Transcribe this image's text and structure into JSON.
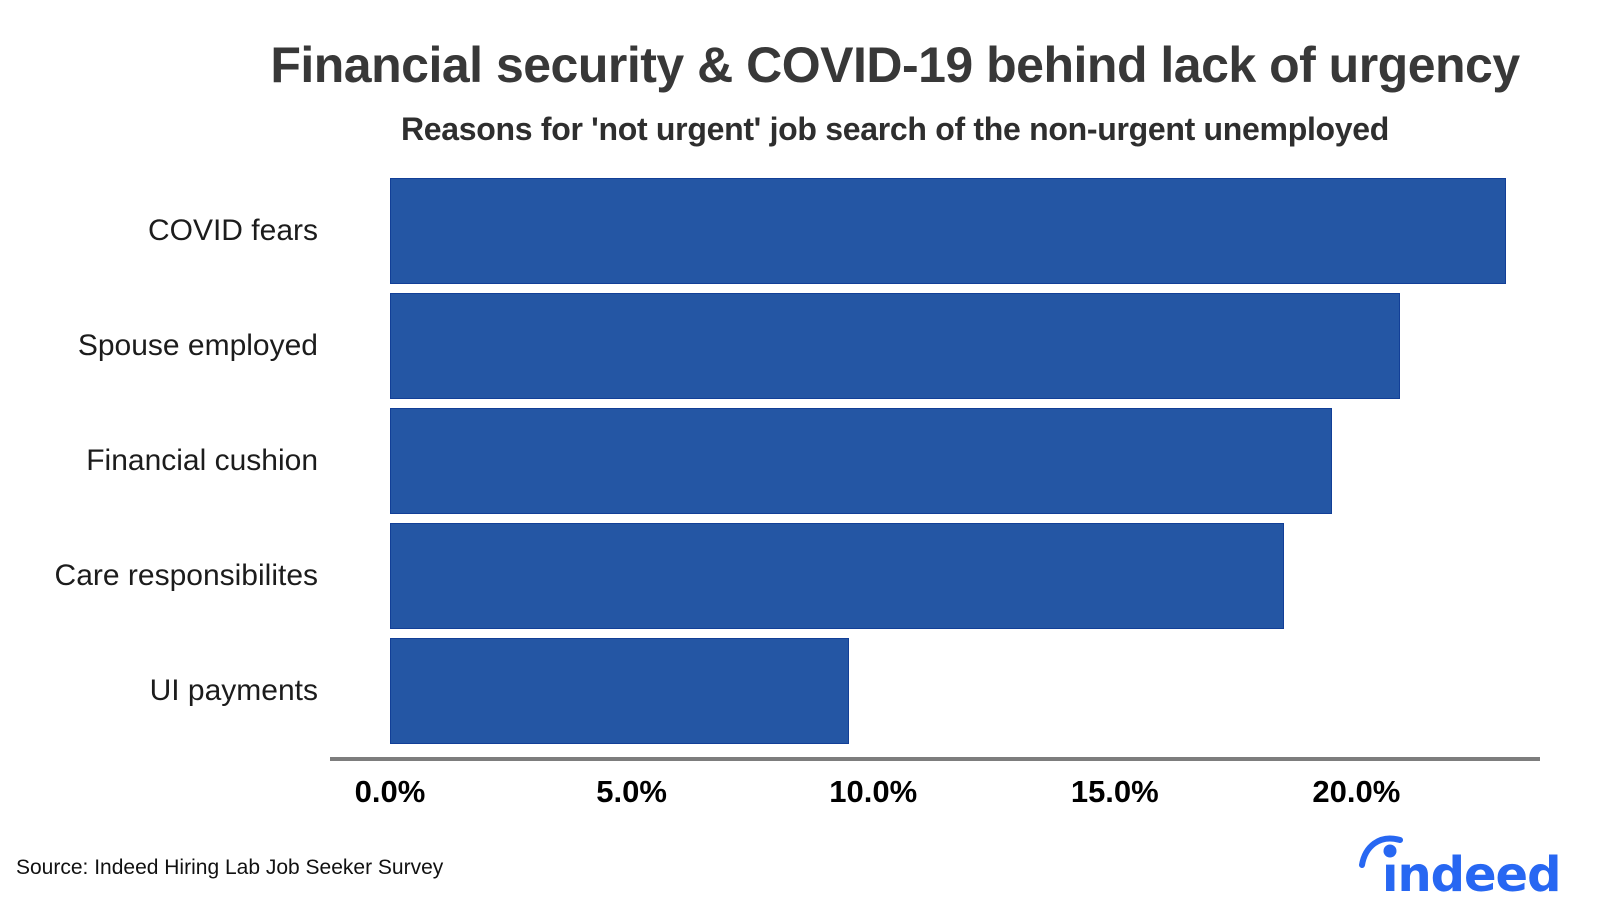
{
  "page": {
    "title": "Financial security & COVID-19 behind lack of urgency",
    "subtitle": "Reasons for 'not urgent' job search of the non-urgent unemployed",
    "source_note": "Source: Indeed Hiring Lab Job Seeker Survey",
    "background_color": "#ffffff"
  },
  "logo": {
    "brand": "indeed",
    "color": "#2767f2"
  },
  "chart_data": {
    "type": "bar",
    "orientation": "horizontal",
    "title": "Financial security & COVID-19 behind lack of urgency",
    "subtitle": "Reasons for 'not urgent' job search of the non-urgent unemployed",
    "categories": [
      "COVID fears",
      "Spouse employed",
      "Financial cushion",
      "Care responsibilites",
      "UI payments"
    ],
    "values": [
      23.1,
      20.9,
      19.5,
      18.5,
      9.5
    ],
    "unit": "percent",
    "xlabel": "",
    "ylabel": "",
    "x_ticks": [
      {
        "value": 0,
        "label": "0.0%"
      },
      {
        "value": 5,
        "label": "5.0%"
      },
      {
        "value": 10,
        "label": "10.0%"
      },
      {
        "value": 15,
        "label": "15.0%"
      },
      {
        "value": 20,
        "label": "20.0%"
      }
    ],
    "xlim": [
      0,
      23.8
    ],
    "grid": false,
    "legend": false,
    "bar_color": "#2456a4",
    "bar_border_color": "#123f97",
    "axis_line_color": "#7d7d7d"
  }
}
